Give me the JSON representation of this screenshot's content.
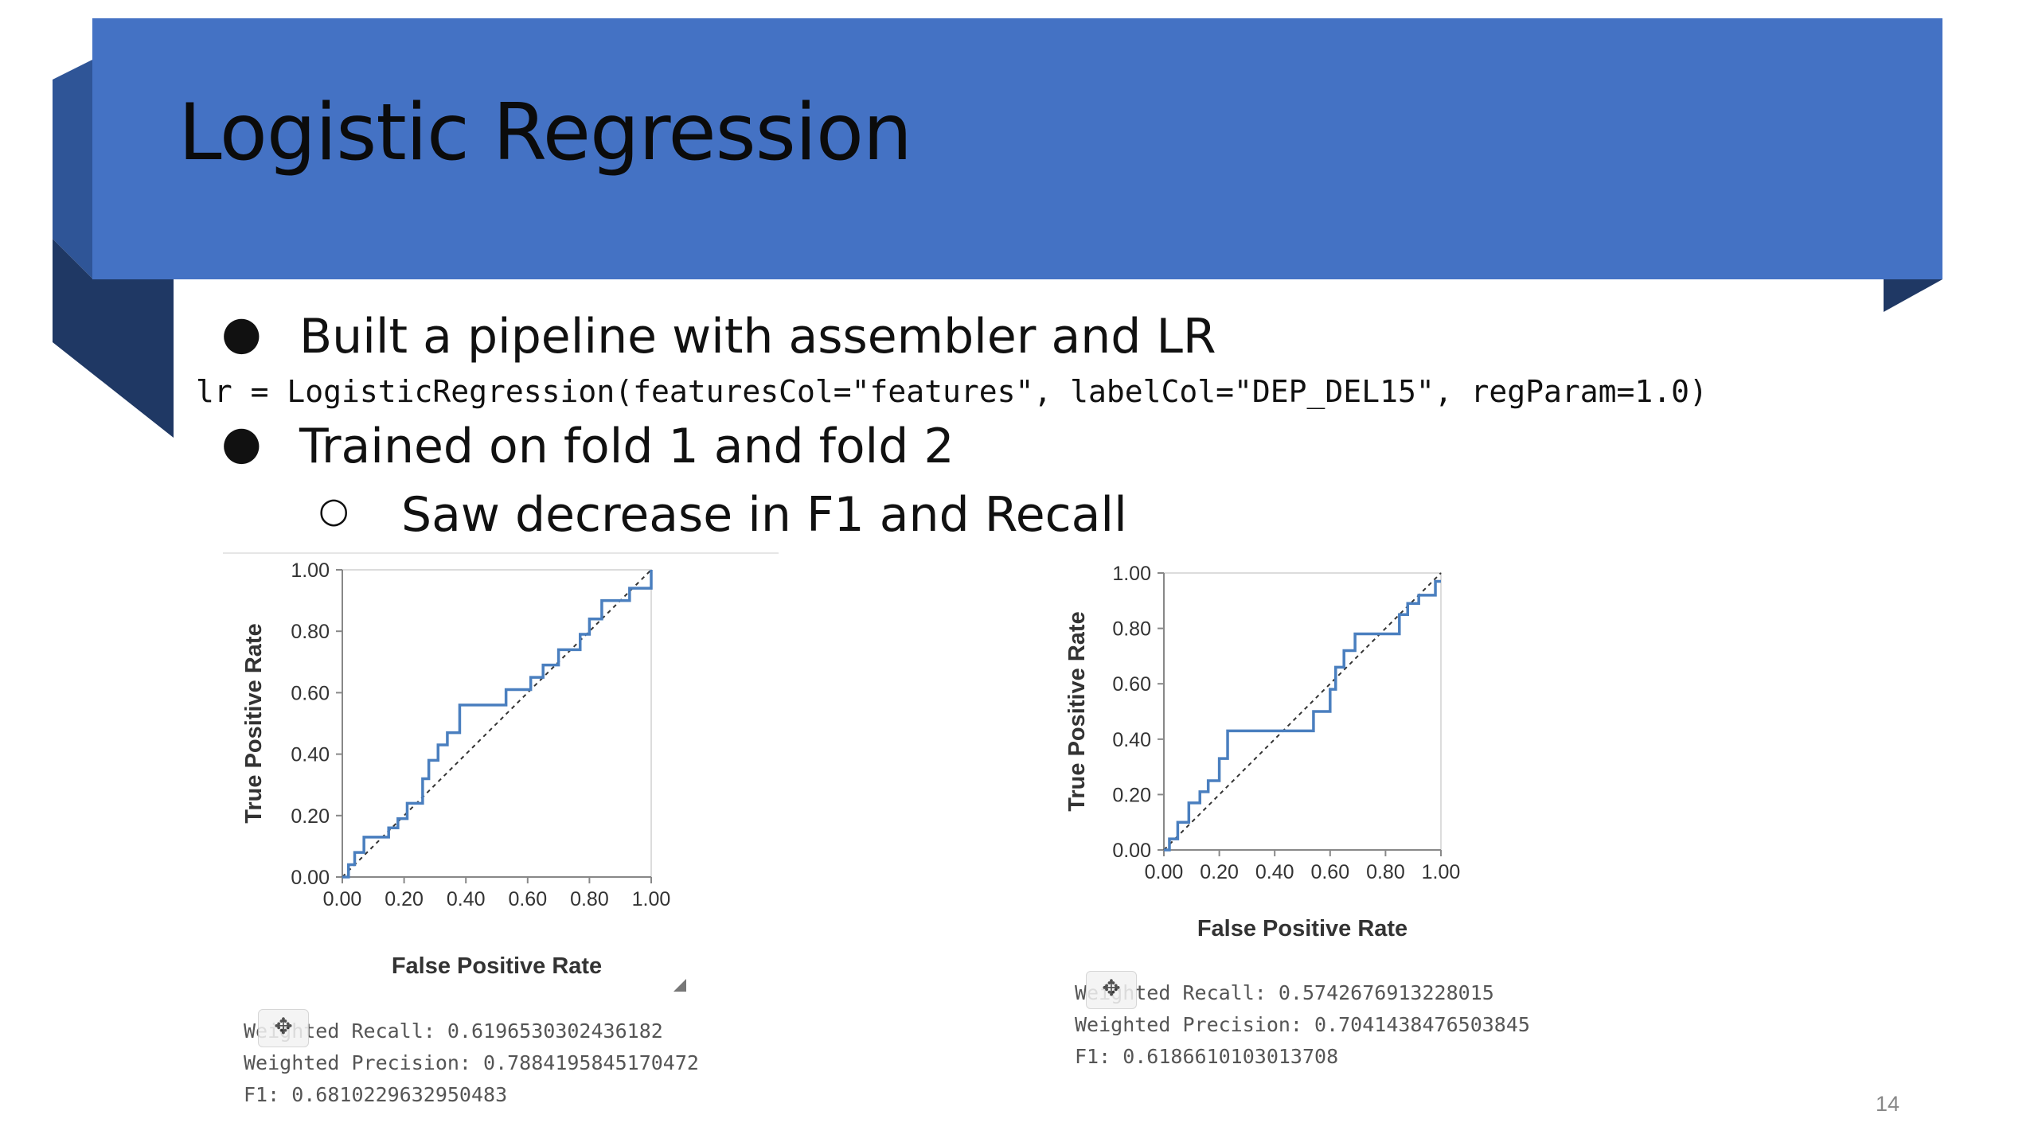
{
  "slide": {
    "title": "Logistic Regression",
    "bullets": [
      {
        "marker": "●",
        "text": "Built a pipeline with assembler and LR"
      },
      {
        "marker": "●",
        "text": "Trained on fold 1 and fold 2"
      },
      {
        "marker": "○",
        "text": "Saw decrease in F1 and Recall"
      }
    ],
    "code": "lr = LogisticRegression(featuresCol=\"features\", labelCol=\"DEP_DEL15\", regParam=1.0)",
    "page_number": "14",
    "colors": {
      "banner": "#4472c4",
      "ribbon_dark": "#2f5597",
      "ribbon_darker": "#1f3864",
      "curve": "#4a7fbf"
    }
  },
  "metrics": [
    {
      "recall": "Weighted Recall: 0.6196530302436182",
      "precision": "Weighted Precision: 0.7884195845170472",
      "f1": "F1: 0.6810229632950483"
    },
    {
      "recall": "Weighted Recall: 0.5742676913228015",
      "precision": "Weighted Precision: 0.7041438476503845",
      "f1": "F1: 0.6186610103013708"
    }
  ],
  "widget_icon": "pointer-icon",
  "chart_data": [
    {
      "type": "line",
      "xlabel": "False Positive Rate",
      "ylabel": "True Positive Rate",
      "xlim": [
        0,
        1
      ],
      "ylim": [
        0,
        1
      ],
      "xticks": [
        "0.00",
        "0.20",
        "0.40",
        "0.60",
        "0.80",
        "1.00"
      ],
      "yticks": [
        "0.00",
        "0.20",
        "0.40",
        "0.60",
        "0.80",
        "1.00"
      ],
      "grid": false,
      "diagonal": "dashed",
      "series": [
        {
          "x": [
            0.0,
            0.02,
            0.02,
            0.04,
            0.04,
            0.07,
            0.07,
            0.15,
            0.15,
            0.18,
            0.18,
            0.21,
            0.21,
            0.26,
            0.26,
            0.28,
            0.28,
            0.31,
            0.31,
            0.34,
            0.34,
            0.38,
            0.38,
            0.53,
            0.53,
            0.61,
            0.61,
            0.65,
            0.65,
            0.7,
            0.7,
            0.77,
            0.77,
            0.8,
            0.8,
            0.84,
            0.84,
            0.93,
            0.93,
            1.0,
            1.0
          ],
          "y": [
            0.0,
            0.0,
            0.04,
            0.04,
            0.08,
            0.08,
            0.13,
            0.13,
            0.16,
            0.16,
            0.19,
            0.19,
            0.24,
            0.24,
            0.32,
            0.32,
            0.38,
            0.38,
            0.43,
            0.43,
            0.47,
            0.47,
            0.56,
            0.56,
            0.61,
            0.61,
            0.65,
            0.65,
            0.69,
            0.69,
            0.74,
            0.74,
            0.79,
            0.79,
            0.84,
            0.84,
            0.9,
            0.9,
            0.94,
            0.94,
            1.0
          ]
        }
      ]
    },
    {
      "type": "line",
      "xlabel": "False Positive Rate",
      "ylabel": "True Positive Rate",
      "xlim": [
        0,
        1
      ],
      "ylim": [
        0,
        1
      ],
      "xticks": [
        "0.00",
        "0.20",
        "0.40",
        "0.60",
        "0.80",
        "1.00"
      ],
      "yticks": [
        "0.00",
        "0.20",
        "0.40",
        "0.60",
        "0.80",
        "1.00"
      ],
      "grid": false,
      "diagonal": "dashed",
      "series": [
        {
          "x": [
            0.0,
            0.02,
            0.02,
            0.05,
            0.05,
            0.09,
            0.09,
            0.13,
            0.13,
            0.16,
            0.16,
            0.2,
            0.2,
            0.23,
            0.23,
            0.54,
            0.54,
            0.6,
            0.6,
            0.62,
            0.62,
            0.65,
            0.65,
            0.69,
            0.69,
            0.85,
            0.85,
            0.88,
            0.88,
            0.92,
            0.92,
            0.98,
            0.98,
            1.0
          ],
          "y": [
            0.0,
            0.0,
            0.04,
            0.04,
            0.1,
            0.1,
            0.17,
            0.17,
            0.21,
            0.21,
            0.25,
            0.25,
            0.33,
            0.33,
            0.43,
            0.43,
            0.5,
            0.5,
            0.58,
            0.58,
            0.66,
            0.66,
            0.72,
            0.72,
            0.78,
            0.78,
            0.85,
            0.85,
            0.89,
            0.89,
            0.92,
            0.92,
            0.97,
            0.97
          ]
        }
      ]
    }
  ]
}
